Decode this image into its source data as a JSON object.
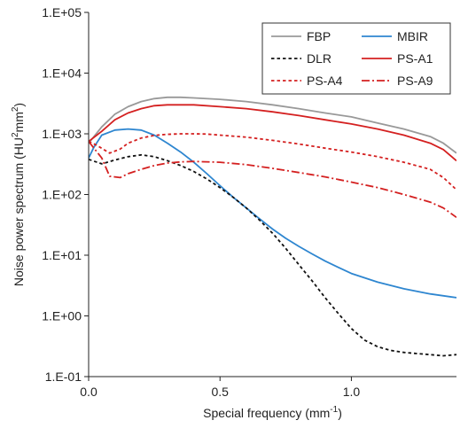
{
  "chart_data": {
    "type": "line",
    "xlabel": {
      "main": "Special frequency (mm",
      "sup": "-1",
      "close": ")"
    },
    "ylabel": {
      "main": "Noise power spectrum (HU",
      "sup1": "2",
      "mid": "mm",
      "sup2": "2",
      "close": ")"
    },
    "xlim": [
      0,
      1.4
    ],
    "ylim": [
      0.1,
      100000
    ],
    "yscale": "log",
    "xticks": [
      0,
      0.5,
      1.0
    ],
    "xtick_labels": [
      "0.0",
      "0.5",
      "1.0"
    ],
    "yticks": [
      0.1,
      1,
      10,
      100,
      1000,
      10000,
      100000
    ],
    "ytick_labels": [
      "1.E-01",
      "1.E+00",
      "1.E+01",
      "1.E+02",
      "1.E+03",
      "1.E+04",
      "1.E+05"
    ],
    "grid": false,
    "legend_position": "top-right",
    "series": [
      {
        "name": "FBP",
        "color": "#999999",
        "dash": "solid",
        "x": [
          0.0,
          0.05,
          0.1,
          0.15,
          0.2,
          0.25,
          0.3,
          0.35,
          0.4,
          0.5,
          0.6,
          0.7,
          0.8,
          0.9,
          1.0,
          1.1,
          1.2,
          1.3,
          1.35,
          1.4
        ],
        "y": [
          700,
          1300,
          2100,
          2800,
          3400,
          3800,
          4000,
          4000,
          3900,
          3700,
          3400,
          3000,
          2600,
          2200,
          1900,
          1500,
          1200,
          900,
          700,
          480
        ]
      },
      {
        "name": "MBIR",
        "color": "#2e86d0",
        "dash": "solid",
        "x": [
          0.0,
          0.02,
          0.05,
          0.1,
          0.15,
          0.2,
          0.25,
          0.3,
          0.35,
          0.4,
          0.45,
          0.5,
          0.55,
          0.6,
          0.65,
          0.7,
          0.75,
          0.8,
          0.85,
          0.9,
          0.95,
          1.0,
          1.1,
          1.2,
          1.3,
          1.4
        ],
        "y": [
          400,
          600,
          950,
          1150,
          1200,
          1150,
          950,
          700,
          500,
          340,
          220,
          140,
          90,
          60,
          40,
          27,
          19,
          14,
          10.5,
          8,
          6.3,
          5,
          3.6,
          2.8,
          2.3,
          2.0
        ]
      },
      {
        "name": "DLR",
        "color": "#111111",
        "dash": "short",
        "x": [
          0.0,
          0.05,
          0.1,
          0.15,
          0.2,
          0.25,
          0.3,
          0.35,
          0.4,
          0.45,
          0.5,
          0.55,
          0.6,
          0.65,
          0.7,
          0.75,
          0.8,
          0.85,
          0.9,
          0.95,
          1.0,
          1.05,
          1.1,
          1.15,
          1.2,
          1.25,
          1.3,
          1.35,
          1.4
        ],
        "y": [
          380,
          320,
          370,
          420,
          450,
          420,
          360,
          300,
          240,
          180,
          130,
          90,
          60,
          38,
          23,
          13,
          7,
          3.8,
          2,
          1.1,
          0.62,
          0.4,
          0.31,
          0.27,
          0.25,
          0.24,
          0.23,
          0.22,
          0.23
        ]
      },
      {
        "name": "PS-A1",
        "color": "#d42020",
        "dash": "solid",
        "x": [
          0.0,
          0.05,
          0.1,
          0.15,
          0.2,
          0.25,
          0.3,
          0.35,
          0.4,
          0.5,
          0.6,
          0.7,
          0.8,
          0.9,
          1.0,
          1.1,
          1.2,
          1.3,
          1.35,
          1.4
        ],
        "y": [
          750,
          1100,
          1700,
          2200,
          2600,
          2900,
          3000,
          3000,
          3000,
          2800,
          2600,
          2300,
          2000,
          1700,
          1450,
          1200,
          950,
          700,
          550,
          360
        ]
      },
      {
        "name": "PS-A4",
        "color": "#d42020",
        "dash": "short",
        "x": [
          0.0,
          0.03,
          0.08,
          0.12,
          0.15,
          0.2,
          0.25,
          0.3,
          0.35,
          0.4,
          0.45,
          0.5,
          0.6,
          0.7,
          0.8,
          0.9,
          1.0,
          1.1,
          1.2,
          1.3,
          1.35,
          1.4
        ],
        "y": [
          750,
          650,
          480,
          560,
          700,
          850,
          940,
          980,
          1000,
          1000,
          990,
          950,
          880,
          780,
          680,
          580,
          500,
          420,
          340,
          260,
          190,
          120
        ]
      },
      {
        "name": "PS-A9",
        "color": "#d42020",
        "dash": "dashdot",
        "x": [
          0.0,
          0.05,
          0.08,
          0.12,
          0.15,
          0.2,
          0.25,
          0.3,
          0.35,
          0.4,
          0.5,
          0.6,
          0.7,
          0.8,
          0.9,
          1.0,
          1.1,
          1.2,
          1.3,
          1.35,
          1.4
        ],
        "y": [
          750,
          400,
          200,
          190,
          220,
          260,
          300,
          330,
          345,
          350,
          340,
          310,
          270,
          230,
          195,
          160,
          130,
          100,
          75,
          60,
          42
        ]
      }
    ]
  }
}
